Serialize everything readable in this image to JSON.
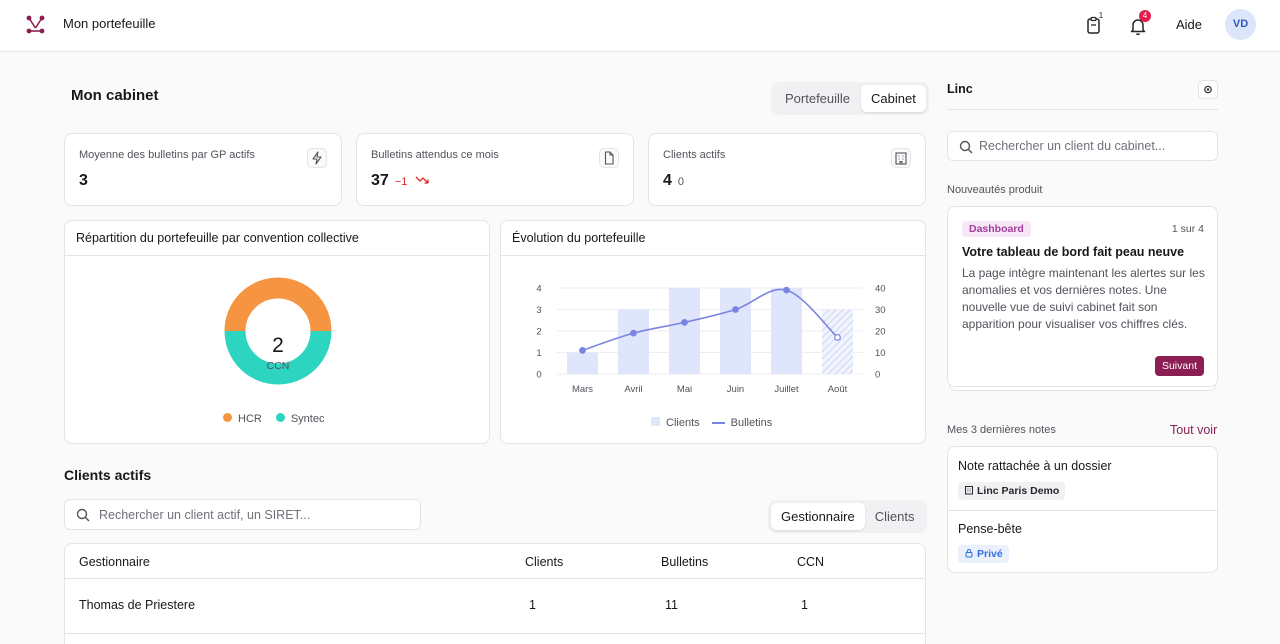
{
  "topbar": {
    "app_title": "Mon portefeuille",
    "tasks_badge": "1",
    "notifications_badge": "4",
    "help_label": "Aide",
    "avatar_initials": "VD"
  },
  "page": {
    "title": "Mon cabinet",
    "view_toggle": [
      "Portefeuille",
      "Cabinet"
    ],
    "view_toggle_active": "Cabinet"
  },
  "stats": [
    {
      "label": "Moyenne des bulletins par GP actifs",
      "value": "3",
      "sub": "",
      "icon": "bolt-icon"
    },
    {
      "label": "Bulletins attendus ce mois",
      "value": "37",
      "sub": "−1",
      "sub_color": "#dc2626",
      "icon": "document-icon"
    },
    {
      "label": "Clients actifs",
      "value": "4",
      "sub": "0",
      "sub_color": "#52525b",
      "icon": "building-icon"
    }
  ],
  "donut_panel": {
    "title": "Répartition du portefeuille par convention collective",
    "center_value": "2",
    "center_label": "CCN",
    "legend": [
      {
        "label": "HCR",
        "color": "#f59542"
      },
      {
        "label": "Syntec",
        "color": "#2dd4bf"
      }
    ]
  },
  "evolution_panel": {
    "title": "Évolution du portefeuille",
    "legend_clients": "Clients",
    "legend_bulletins": "Bulletins"
  },
  "chart_data": [
    {
      "type": "pie",
      "categories": [
        "HCR",
        "Syntec"
      ],
      "values": [
        1,
        1
      ],
      "colors": [
        "#f59542",
        "#2dd4bf"
      ],
      "center_text": "2 CCN"
    },
    {
      "type": "bar",
      "categories": [
        "Mars",
        "Avril",
        "Mai",
        "Juin",
        "Juillet",
        "Août"
      ],
      "series": [
        {
          "name": "Clients",
          "type": "bar",
          "axis": "left",
          "values": [
            1,
            3,
            4,
            4,
            4,
            3
          ],
          "color": "#dfe5fb",
          "last_hatched": true
        },
        {
          "name": "Bulletins",
          "type": "line",
          "axis": "right",
          "values": [
            11,
            19,
            24,
            30,
            39,
            17
          ],
          "color": "#7b84e0"
        }
      ],
      "ylim_left": [
        0,
        4
      ],
      "yticks_left": [
        "0",
        "1",
        "2",
        "3",
        "4"
      ],
      "ylim_right": [
        0,
        40
      ],
      "yticks_right": [
        "0",
        "10",
        "20",
        "30",
        "40"
      ],
      "grid": true
    }
  ],
  "clients_section": {
    "title": "Clients actifs",
    "search_placeholder": "Rechercher un client actif, un SIRET...",
    "tabs": [
      "Gestionnaire",
      "Clients"
    ],
    "tabs_active": "Gestionnaire",
    "columns": [
      "Gestionnaire",
      "Clients",
      "Bulletins",
      "CCN"
    ],
    "rows": [
      [
        "Thomas de Priestere",
        "1",
        "11",
        "1"
      ]
    ]
  },
  "right_panel": {
    "title": "Linc",
    "search_placeholder": "Rechercher un client du cabinet...",
    "news_label": "Nouveautés produit",
    "news": {
      "tag": "Dashboard",
      "count": "1 sur 4",
      "title": "Votre tableau de bord fait peau neuve",
      "body": "La page intègre maintenant les alertes sur les anomalies et vos dernières notes. Une nouvelle vue de suivi cabinet fait son apparition pour visualiser vos chiffres clés.",
      "next_label": "Suivant"
    },
    "notes_label": "Mes 3 dernières notes",
    "see_all_label": "Tout voir",
    "notes": [
      {
        "title": "Note rattachée à un dossier",
        "chip": "Linc Paris Demo",
        "chip_icon": "building-icon"
      },
      {
        "title": "Pense-bête",
        "chip": "Privé",
        "chip_icon": "lock-icon"
      }
    ]
  }
}
